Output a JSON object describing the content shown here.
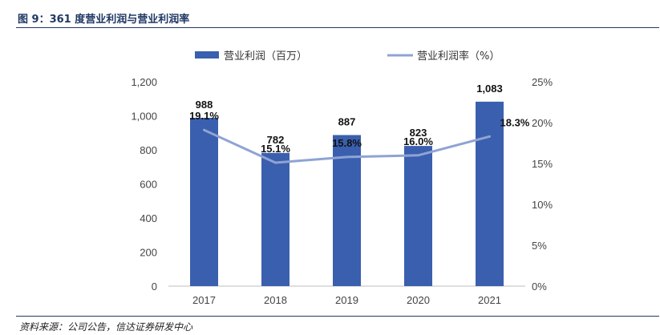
{
  "header": {
    "title": "图 9：361 度营业利润与营业利润率"
  },
  "footer": {
    "source": "资料来源：公司公告，信达证券研发中心"
  },
  "colors": {
    "bar": "#3a5fae",
    "line": "#8fa3d4",
    "title": "#1f3864",
    "axis": "#bfbfbf"
  },
  "chart_data": {
    "type": "bar",
    "title": "",
    "categories": [
      "2017",
      "2018",
      "2019",
      "2020",
      "2021"
    ],
    "series": [
      {
        "name": "营业利润（百万）",
        "type": "bar",
        "axis": "left",
        "values": [
          988,
          782,
          887,
          823,
          1083
        ],
        "labels": [
          "988",
          "782",
          "887",
          "823",
          "1,083"
        ]
      },
      {
        "name": "营业利润率（%）",
        "type": "line",
        "axis": "right",
        "values": [
          19.1,
          15.1,
          15.8,
          16.0,
          18.3
        ],
        "labels": [
          "19.1%",
          "15.1%",
          "15.8%",
          "16.0%",
          "18.3%"
        ]
      }
    ],
    "y_left": {
      "min": 0,
      "max": 1200,
      "ticks": [
        "0",
        "200",
        "400",
        "600",
        "800",
        "1,000",
        "1,200"
      ]
    },
    "y_right": {
      "min": 0,
      "max": 25,
      "ticks": [
        "0%",
        "5%",
        "10%",
        "15%",
        "20%",
        "25%"
      ]
    },
    "grid": false,
    "legend_position": "top"
  }
}
